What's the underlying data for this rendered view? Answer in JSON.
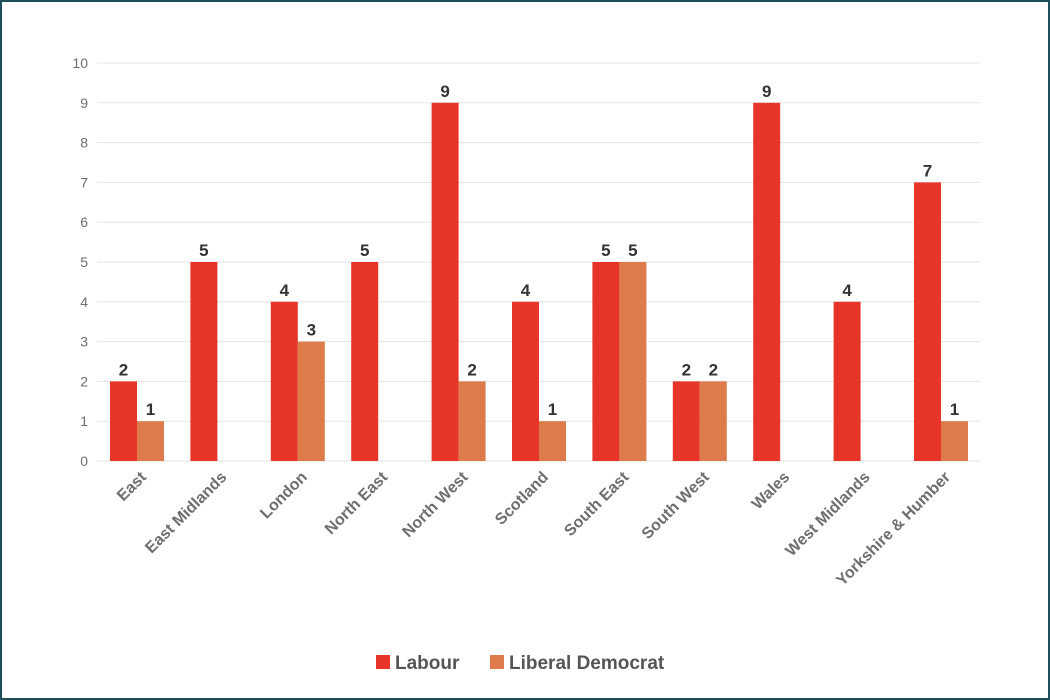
{
  "colors": {
    "Labour": "#e8352a",
    "Liberal Democrat": "#dd7b4b"
  },
  "chart_data": {
    "type": "bar",
    "categories": [
      "East",
      "East Midlands",
      "London",
      "North East",
      "North West",
      "Scotland",
      "South East",
      "South West",
      "Wales",
      "West Midlands",
      "Yorkshire & Humber"
    ],
    "series": [
      {
        "name": "Labour",
        "values": [
          2,
          5,
          4,
          5,
          9,
          4,
          5,
          2,
          9,
          4,
          7
        ]
      },
      {
        "name": "Liberal Democrat",
        "values": [
          1,
          0,
          3,
          0,
          2,
          1,
          5,
          2,
          0,
          0,
          1
        ]
      }
    ],
    "title": "",
    "xlabel": "",
    "ylabel": "",
    "ylim": [
      0,
      10
    ],
    "yticks": [
      0,
      1,
      2,
      3,
      4,
      5,
      6,
      7,
      8,
      9,
      10
    ],
    "grid": true,
    "legend": "bottom"
  }
}
